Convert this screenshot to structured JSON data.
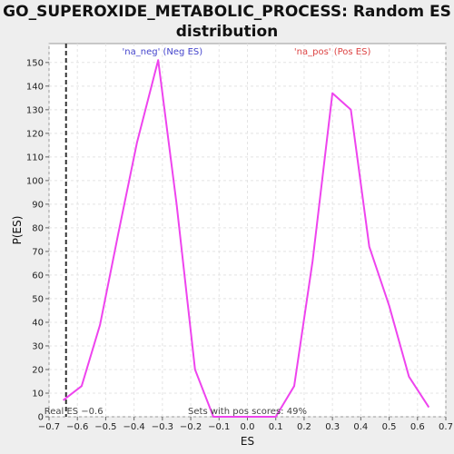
{
  "chart_data": {
    "type": "line",
    "title": "GO_SUPEROXIDE_METABOLIC_PROCESS: Random ES distribution",
    "xlabel": "ES",
    "ylabel": "P(ES)",
    "xlim": [
      -0.7,
      0.7
    ],
    "ylim": [
      0,
      158
    ],
    "xticks": [
      -0.7,
      -0.6,
      -0.5,
      -0.4,
      -0.3,
      -0.2,
      -0.1,
      0.0,
      0.1,
      0.2,
      0.3,
      0.4,
      0.5,
      0.6,
      0.7
    ],
    "xtick_labels": [
      "−0.7",
      "−0.6",
      "−0.5",
      "−0.4",
      "−0.3",
      "−0.2",
      "−0.1",
      "0.0",
      "0.1",
      "0.2",
      "0.3",
      "0.4",
      "0.5",
      "0.6",
      "0.7"
    ],
    "yticks": [
      0,
      10,
      20,
      30,
      40,
      50,
      60,
      70,
      80,
      90,
      100,
      110,
      120,
      130,
      140,
      150
    ],
    "grid": true,
    "series": [
      {
        "color": "#ee44ee",
        "x": [
          -0.65,
          -0.585,
          -0.52,
          -0.455,
          -0.39,
          -0.315,
          -0.25,
          -0.185,
          -0.12,
          -0.055,
          0.0,
          0.055,
          0.1,
          0.165,
          0.23,
          0.3,
          0.365,
          0.43,
          0.5,
          0.57,
          0.64
        ],
        "y": [
          7,
          13,
          39,
          78,
          116,
          151,
          90,
          20,
          0,
          0,
          0,
          0,
          0,
          13,
          66,
          137,
          130,
          72,
          47,
          17,
          4
        ]
      }
    ],
    "vline": {
      "x": -0.64,
      "label": "Real ES −0.6"
    },
    "annotations": {
      "neg": {
        "text": "'na_neg' (Neg ES)",
        "x": -0.3,
        "y": 155,
        "color": "#4444cc"
      },
      "pos": {
        "text": "'na_pos' (Pos ES)",
        "x": 0.3,
        "y": 155,
        "color": "#dd4444"
      },
      "footer": {
        "text": "Sets with pos scores: 49%",
        "x": 0.0,
        "y": 0
      }
    }
  }
}
